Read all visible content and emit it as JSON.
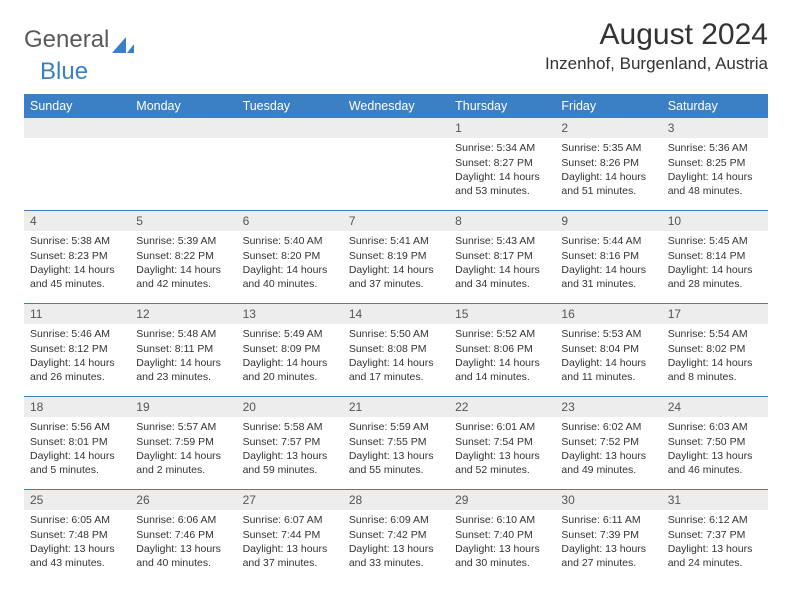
{
  "logo": {
    "part1": "General",
    "part2": "Blue"
  },
  "header": {
    "title": "August 2024",
    "location": "Inzenhof, Burgenland, Austria"
  },
  "colors": {
    "accent": "#3b7fc4",
    "daynum_bg": "#ededed",
    "daynum_fg": "#555555",
    "text": "#333333",
    "header_text": "#ffffff",
    "logo_gray": "#5a5a5a"
  },
  "daylabels": [
    "Sunday",
    "Monday",
    "Tuesday",
    "Wednesday",
    "Thursday",
    "Friday",
    "Saturday"
  ],
  "weeks": [
    [
      {
        "n": "",
        "sr": "",
        "ss": "",
        "dl": ""
      },
      {
        "n": "",
        "sr": "",
        "ss": "",
        "dl": ""
      },
      {
        "n": "",
        "sr": "",
        "ss": "",
        "dl": ""
      },
      {
        "n": "",
        "sr": "",
        "ss": "",
        "dl": ""
      },
      {
        "n": "1",
        "sr": "Sunrise: 5:34 AM",
        "ss": "Sunset: 8:27 PM",
        "dl": "Daylight: 14 hours and 53 minutes."
      },
      {
        "n": "2",
        "sr": "Sunrise: 5:35 AM",
        "ss": "Sunset: 8:26 PM",
        "dl": "Daylight: 14 hours and 51 minutes."
      },
      {
        "n": "3",
        "sr": "Sunrise: 5:36 AM",
        "ss": "Sunset: 8:25 PM",
        "dl": "Daylight: 14 hours and 48 minutes."
      }
    ],
    [
      {
        "n": "4",
        "sr": "Sunrise: 5:38 AM",
        "ss": "Sunset: 8:23 PM",
        "dl": "Daylight: 14 hours and 45 minutes."
      },
      {
        "n": "5",
        "sr": "Sunrise: 5:39 AM",
        "ss": "Sunset: 8:22 PM",
        "dl": "Daylight: 14 hours and 42 minutes."
      },
      {
        "n": "6",
        "sr": "Sunrise: 5:40 AM",
        "ss": "Sunset: 8:20 PM",
        "dl": "Daylight: 14 hours and 40 minutes."
      },
      {
        "n": "7",
        "sr": "Sunrise: 5:41 AM",
        "ss": "Sunset: 8:19 PM",
        "dl": "Daylight: 14 hours and 37 minutes."
      },
      {
        "n": "8",
        "sr": "Sunrise: 5:43 AM",
        "ss": "Sunset: 8:17 PM",
        "dl": "Daylight: 14 hours and 34 minutes."
      },
      {
        "n": "9",
        "sr": "Sunrise: 5:44 AM",
        "ss": "Sunset: 8:16 PM",
        "dl": "Daylight: 14 hours and 31 minutes."
      },
      {
        "n": "10",
        "sr": "Sunrise: 5:45 AM",
        "ss": "Sunset: 8:14 PM",
        "dl": "Daylight: 14 hours and 28 minutes."
      }
    ],
    [
      {
        "n": "11",
        "sr": "Sunrise: 5:46 AM",
        "ss": "Sunset: 8:12 PM",
        "dl": "Daylight: 14 hours and 26 minutes."
      },
      {
        "n": "12",
        "sr": "Sunrise: 5:48 AM",
        "ss": "Sunset: 8:11 PM",
        "dl": "Daylight: 14 hours and 23 minutes."
      },
      {
        "n": "13",
        "sr": "Sunrise: 5:49 AM",
        "ss": "Sunset: 8:09 PM",
        "dl": "Daylight: 14 hours and 20 minutes."
      },
      {
        "n": "14",
        "sr": "Sunrise: 5:50 AM",
        "ss": "Sunset: 8:08 PM",
        "dl": "Daylight: 14 hours and 17 minutes."
      },
      {
        "n": "15",
        "sr": "Sunrise: 5:52 AM",
        "ss": "Sunset: 8:06 PM",
        "dl": "Daylight: 14 hours and 14 minutes."
      },
      {
        "n": "16",
        "sr": "Sunrise: 5:53 AM",
        "ss": "Sunset: 8:04 PM",
        "dl": "Daylight: 14 hours and 11 minutes."
      },
      {
        "n": "17",
        "sr": "Sunrise: 5:54 AM",
        "ss": "Sunset: 8:02 PM",
        "dl": "Daylight: 14 hours and 8 minutes."
      }
    ],
    [
      {
        "n": "18",
        "sr": "Sunrise: 5:56 AM",
        "ss": "Sunset: 8:01 PM",
        "dl": "Daylight: 14 hours and 5 minutes."
      },
      {
        "n": "19",
        "sr": "Sunrise: 5:57 AM",
        "ss": "Sunset: 7:59 PM",
        "dl": "Daylight: 14 hours and 2 minutes."
      },
      {
        "n": "20",
        "sr": "Sunrise: 5:58 AM",
        "ss": "Sunset: 7:57 PM",
        "dl": "Daylight: 13 hours and 59 minutes."
      },
      {
        "n": "21",
        "sr": "Sunrise: 5:59 AM",
        "ss": "Sunset: 7:55 PM",
        "dl": "Daylight: 13 hours and 55 minutes."
      },
      {
        "n": "22",
        "sr": "Sunrise: 6:01 AM",
        "ss": "Sunset: 7:54 PM",
        "dl": "Daylight: 13 hours and 52 minutes."
      },
      {
        "n": "23",
        "sr": "Sunrise: 6:02 AM",
        "ss": "Sunset: 7:52 PM",
        "dl": "Daylight: 13 hours and 49 minutes."
      },
      {
        "n": "24",
        "sr": "Sunrise: 6:03 AM",
        "ss": "Sunset: 7:50 PM",
        "dl": "Daylight: 13 hours and 46 minutes."
      }
    ],
    [
      {
        "n": "25",
        "sr": "Sunrise: 6:05 AM",
        "ss": "Sunset: 7:48 PM",
        "dl": "Daylight: 13 hours and 43 minutes."
      },
      {
        "n": "26",
        "sr": "Sunrise: 6:06 AM",
        "ss": "Sunset: 7:46 PM",
        "dl": "Daylight: 13 hours and 40 minutes."
      },
      {
        "n": "27",
        "sr": "Sunrise: 6:07 AM",
        "ss": "Sunset: 7:44 PM",
        "dl": "Daylight: 13 hours and 37 minutes."
      },
      {
        "n": "28",
        "sr": "Sunrise: 6:09 AM",
        "ss": "Sunset: 7:42 PM",
        "dl": "Daylight: 13 hours and 33 minutes."
      },
      {
        "n": "29",
        "sr": "Sunrise: 6:10 AM",
        "ss": "Sunset: 7:40 PM",
        "dl": "Daylight: 13 hours and 30 minutes."
      },
      {
        "n": "30",
        "sr": "Sunrise: 6:11 AM",
        "ss": "Sunset: 7:39 PM",
        "dl": "Daylight: 13 hours and 27 minutes."
      },
      {
        "n": "31",
        "sr": "Sunrise: 6:12 AM",
        "ss": "Sunset: 7:37 PM",
        "dl": "Daylight: 13 hours and 24 minutes."
      }
    ]
  ]
}
